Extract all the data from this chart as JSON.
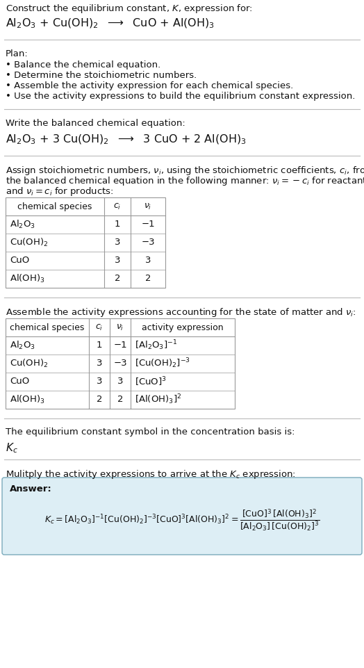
{
  "title_text": "Construct the equilibrium constant, $K$, expression for:",
  "reaction_unbalanced": "Al$_2$O$_3$ + Cu(OH)$_2$  $\\longrightarrow$  CuO + Al(OH)$_3$",
  "plan_header": "Plan:",
  "plan_bullets": [
    "• Balance the chemical equation.",
    "• Determine the stoichiometric numbers.",
    "• Assemble the activity expression for each chemical species.",
    "• Use the activity expressions to build the equilibrium constant expression."
  ],
  "balanced_header": "Write the balanced chemical equation:",
  "reaction_balanced": "Al$_2$O$_3$ + 3 Cu(OH)$_2$  $\\longrightarrow$  3 CuO + 2 Al(OH)$_3$",
  "stoich_header1": "Assign stoichiometric numbers, $\\nu_i$, using the stoichiometric coefficients, $c_i$, from",
  "stoich_header2": "the balanced chemical equation in the following manner: $\\nu_i = -c_i$ for reactants",
  "stoich_header3": "and $\\nu_i = c_i$ for products:",
  "table1_cols": [
    "chemical species",
    "$c_i$",
    "$\\nu_i$"
  ],
  "table1_rows": [
    [
      "Al$_2$O$_3$",
      "1",
      "−1"
    ],
    [
      "Cu(OH)$_2$",
      "3",
      "−3"
    ],
    [
      "CuO",
      "3",
      "3"
    ],
    [
      "Al(OH)$_3$",
      "2",
      "2"
    ]
  ],
  "activity_header": "Assemble the activity expressions accounting for the state of matter and $\\nu_i$:",
  "table2_cols": [
    "chemical species",
    "$c_i$",
    "$\\nu_i$",
    "activity expression"
  ],
  "table2_rows": [
    [
      "Al$_2$O$_3$",
      "1",
      "−1",
      "[Al$_2$O$_3$]$^{-1}$"
    ],
    [
      "Cu(OH)$_2$",
      "3",
      "−3",
      "[Cu(OH)$_2$]$^{-3}$"
    ],
    [
      "CuO",
      "3",
      "3",
      "[CuO]$^3$"
    ],
    [
      "Al(OH)$_3$",
      "2",
      "2",
      "[Al(OH)$_3$]$^2$"
    ]
  ],
  "kc_header": "The equilibrium constant symbol in the concentration basis is:",
  "kc_symbol": "$K_c$",
  "multiply_header": "Mulitply the activity expressions to arrive at the $K_c$ expression:",
  "answer_label": "Answer:",
  "bg_color": "#ffffff",
  "table_border_color": "#999999",
  "answer_box_color": "#ddeef5",
  "answer_box_border": "#7aaabb",
  "font_size": 9.5,
  "small_font": 9.0,
  "reaction_font": 11.5
}
